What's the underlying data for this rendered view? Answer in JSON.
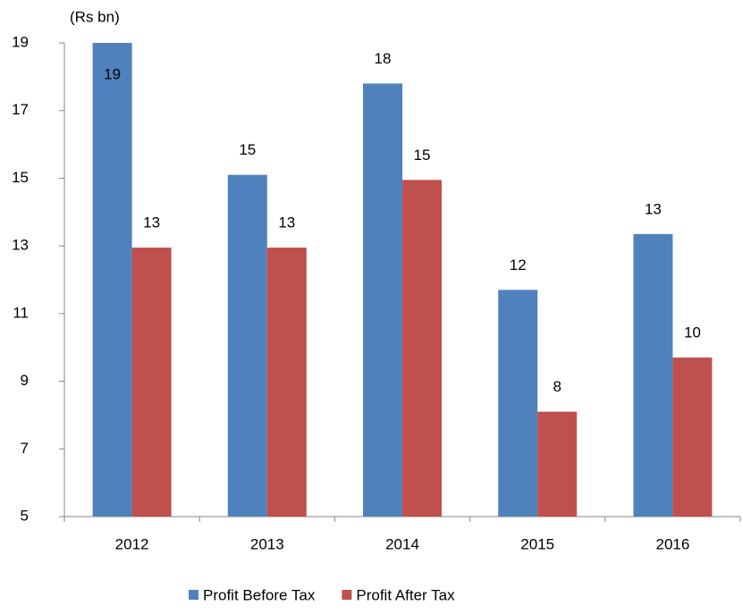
{
  "chart_data": {
    "type": "bar",
    "y_label": "(Rs bn)",
    "categories": [
      "2012",
      "2013",
      "2014",
      "2015",
      "2016"
    ],
    "series": [
      {
        "name": "Profit Before Tax",
        "color": "#4f81bd",
        "values": [
          19.0,
          15.1,
          17.8,
          11.7,
          13.35
        ],
        "value_labels": [
          "19",
          "15",
          "18",
          "12",
          "13"
        ]
      },
      {
        "name": "Profit After Tax",
        "color": "#c0504d",
        "values": [
          12.95,
          12.95,
          14.95,
          8.1,
          9.7
        ],
        "value_labels": [
          "13",
          "13",
          "15",
          "8",
          "10"
        ]
      }
    ],
    "ylim": [
      5,
      19
    ],
    "yticks": [
      5,
      7,
      9,
      11,
      13,
      15,
      17,
      19
    ],
    "grid": false,
    "legend": "bottom"
  }
}
